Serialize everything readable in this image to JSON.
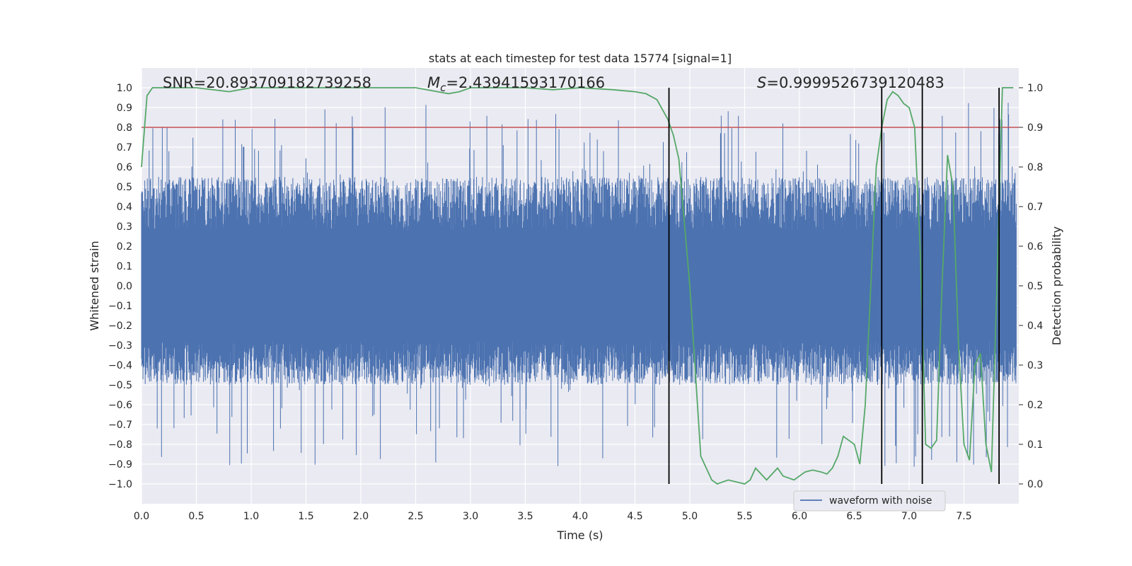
{
  "chart_data": {
    "type": "line",
    "title": "stats at each timestep for test data 15774 [signal=1]",
    "xlabel": "Time (s)",
    "ylabel_left": "Whitened strain",
    "ylabel_right": "Detection probability",
    "xlim": [
      0.0,
      8.0
    ],
    "ylim_left": [
      -1.1,
      1.1
    ],
    "ylim_right": [
      -0.05,
      1.05
    ],
    "x_ticks": [
      "0.0",
      "0.5",
      "1.0",
      "1.5",
      "2.0",
      "2.5",
      "3.0",
      "3.5",
      "4.0",
      "4.5",
      "5.0",
      "5.5",
      "6.0",
      "6.5",
      "7.0",
      "7.5"
    ],
    "y_ticks_left": [
      "1.0",
      "0.9",
      "0.8",
      "0.7",
      "0.6",
      "0.5",
      "0.4",
      "0.3",
      "0.2",
      "0.1",
      "0.0",
      "-0.1",
      "-0.2",
      "-0.3",
      "-0.4",
      "-0.5",
      "-0.6",
      "-0.7",
      "-0.8",
      "-0.9",
      "-1.0"
    ],
    "y_ticks_right": [
      "1.0",
      "0.9",
      "0.8",
      "0.7",
      "0.6",
      "0.5",
      "0.4",
      "0.3",
      "0.2",
      "0.1",
      "0.0"
    ],
    "annotations": {
      "snr": "SNR=20.893709182739258",
      "mc_symbol": "M",
      "mc_sub": "c",
      "mc_value": "=2.43941593170166",
      "s_symbol": "S",
      "s_value": "=0.9999526739120483"
    },
    "legend": {
      "label": "waveform with noise",
      "position": "lower-right"
    },
    "series": [
      {
        "name": "waveform with noise",
        "axis": "left",
        "color": "#4c72b0",
        "envelope": "dense noise roughly between -0.5 and 0.5 with spikes up to about 0.93 and down to about -1.0",
        "max": 0.98,
        "min": -1.0
      },
      {
        "name": "detection probability",
        "axis": "right",
        "color": "#55a868",
        "x": [
          0.0,
          0.05,
          0.1,
          0.2,
          0.5,
          0.8,
          0.9,
          1.0,
          1.1,
          1.5,
          2.0,
          2.5,
          2.7,
          2.8,
          2.9,
          3.0,
          3.5,
          3.75,
          4.0,
          4.3,
          4.5,
          4.6,
          4.7,
          4.8,
          4.85,
          4.9,
          5.0,
          5.1,
          5.2,
          5.25,
          5.35,
          5.5,
          5.55,
          5.6,
          5.7,
          5.8,
          5.85,
          5.95,
          6.05,
          6.12,
          6.2,
          6.25,
          6.3,
          6.35,
          6.4,
          6.5,
          6.55,
          6.6,
          6.65,
          6.7,
          6.75,
          6.8,
          6.85,
          6.9,
          6.95,
          7.0,
          7.05,
          7.1,
          7.15,
          7.2,
          7.25,
          7.3,
          7.35,
          7.4,
          7.45,
          7.5,
          7.55,
          7.6,
          7.65,
          7.7,
          7.75,
          7.8,
          7.85,
          7.9,
          7.95
        ],
        "y": [
          0.8,
          0.98,
          1.0,
          1.0,
          1.0,
          0.99,
          0.995,
          1.0,
          1.0,
          1.0,
          1.0,
          1.0,
          0.99,
          0.985,
          0.99,
          1.0,
          1.0,
          0.995,
          1.0,
          0.995,
          0.99,
          0.985,
          0.97,
          0.92,
          0.88,
          0.82,
          0.5,
          0.07,
          0.01,
          0.0,
          0.01,
          0.0,
          0.01,
          0.04,
          0.01,
          0.04,
          0.02,
          0.01,
          0.03,
          0.035,
          0.03,
          0.025,
          0.04,
          0.07,
          0.12,
          0.1,
          0.05,
          0.2,
          0.5,
          0.8,
          0.9,
          0.97,
          0.99,
          0.98,
          0.96,
          0.95,
          0.9,
          0.6,
          0.1,
          0.09,
          0.11,
          0.5,
          0.83,
          0.75,
          0.35,
          0.1,
          0.06,
          0.3,
          0.33,
          0.1,
          0.03,
          0.5,
          1.0,
          1.0,
          1.0
        ]
      }
    ],
    "reference_lines": {
      "horizontal_right_axis": 0.9,
      "horizontal_color": "#c44e52",
      "vertical_x": [
        4.81,
        6.75,
        7.12,
        7.82
      ],
      "vertical_color": "#000000"
    }
  }
}
